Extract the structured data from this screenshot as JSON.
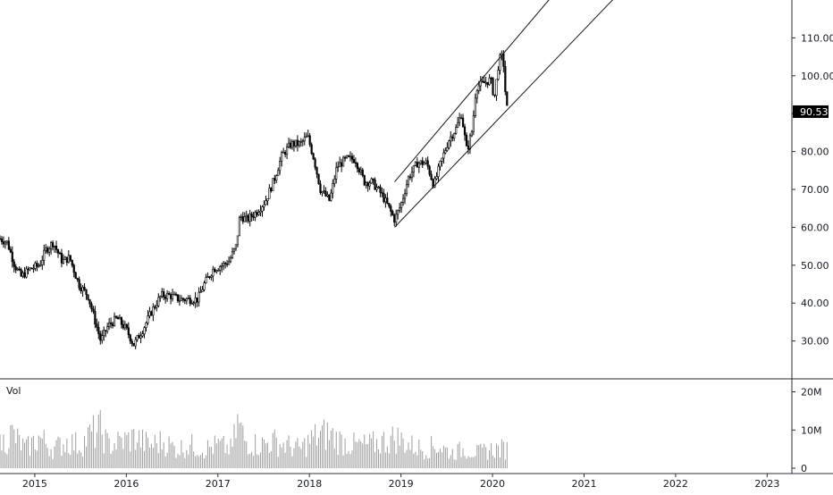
{
  "chart_data": {
    "type": "candlestick",
    "price_axis": {
      "ticks": [
        "110.00",
        "100.00",
        "90.00",
        "80.00",
        "70.00",
        "60.00",
        "50.00",
        "40.00",
        "30.00"
      ],
      "tick_values": [
        110,
        100,
        90,
        80,
        70,
        60,
        50,
        40,
        30
      ],
      "range": [
        20,
        120
      ],
      "last_price_label": "90.53",
      "last_price": 90.53
    },
    "volume_pane": {
      "label": "Vol",
      "ticks": [
        "20M",
        "10M",
        "0"
      ],
      "tick_values": [
        20000000,
        10000000,
        0
      ],
      "range": [
        0,
        22000000
      ]
    },
    "time_axis": {
      "ticks": [
        "2015",
        "2016",
        "2017",
        "2018",
        "2019",
        "2020",
        "2021",
        "2022",
        "2023"
      ],
      "tick_values": [
        2015,
        2016,
        2017,
        2018,
        2019,
        2020,
        2021,
        2022,
        2023
      ],
      "range": [
        2014.62,
        2023.27
      ]
    },
    "price_path": [
      [
        2014.62,
        57
      ],
      [
        2014.7,
        56
      ],
      [
        2014.78,
        50
      ],
      [
        2014.85,
        47
      ],
      [
        2014.95,
        49
      ],
      [
        2015.05,
        50
      ],
      [
        2015.12,
        54
      ],
      [
        2015.2,
        56
      ],
      [
        2015.3,
        51
      ],
      [
        2015.38,
        52
      ],
      [
        2015.48,
        45
      ],
      [
        2015.58,
        42
      ],
      [
        2015.65,
        36
      ],
      [
        2015.72,
        30
      ],
      [
        2015.8,
        34
      ],
      [
        2015.9,
        36
      ],
      [
        2016.0,
        33
      ],
      [
        2016.08,
        29
      ],
      [
        2016.18,
        33
      ],
      [
        2016.28,
        38
      ],
      [
        2016.38,
        42
      ],
      [
        2016.48,
        42
      ],
      [
        2016.58,
        41
      ],
      [
        2016.7,
        41
      ],
      [
        2016.78,
        41
      ],
      [
        2016.85,
        45
      ],
      [
        2016.95,
        49
      ],
      [
        2017.05,
        50
      ],
      [
        2017.12,
        51
      ],
      [
        2017.2,
        55
      ],
      [
        2017.24,
        63
      ],
      [
        2017.32,
        62
      ],
      [
        2017.42,
        64
      ],
      [
        2017.52,
        67
      ],
      [
        2017.62,
        73
      ],
      [
        2017.7,
        79
      ],
      [
        2017.8,
        82
      ],
      [
        2017.9,
        82
      ],
      [
        2017.98,
        84
      ],
      [
        2018.05,
        78
      ],
      [
        2018.12,
        70
      ],
      [
        2018.22,
        67
      ],
      [
        2018.3,
        76
      ],
      [
        2018.4,
        78
      ],
      [
        2018.5,
        78
      ],
      [
        2018.6,
        72
      ],
      [
        2018.68,
        72
      ],
      [
        2018.78,
        69
      ],
      [
        2018.85,
        66
      ],
      [
        2018.93,
        62
      ],
      [
        2019.0,
        66
      ],
      [
        2019.08,
        73
      ],
      [
        2019.18,
        77
      ],
      [
        2019.28,
        77
      ],
      [
        2019.36,
        71
      ],
      [
        2019.42,
        76
      ],
      [
        2019.52,
        83
      ],
      [
        2019.6,
        86
      ],
      [
        2019.66,
        90
      ],
      [
        2019.72,
        80
      ],
      [
        2019.78,
        86
      ],
      [
        2019.82,
        97
      ],
      [
        2019.9,
        98
      ],
      [
        2019.98,
        99
      ],
      [
        2020.02,
        94
      ],
      [
        2020.07,
        104
      ],
      [
        2020.1,
        105
      ],
      [
        2020.12,
        103
      ],
      [
        2020.15,
        92
      ],
      [
        2020.17,
        90.53
      ]
    ],
    "volume_series": [
      [
        2014.62,
        6
      ],
      [
        2014.75,
        9
      ],
      [
        2014.9,
        5
      ],
      [
        2015.05,
        8
      ],
      [
        2015.2,
        5
      ],
      [
        2015.35,
        7
      ],
      [
        2015.5,
        6
      ],
      [
        2015.62,
        9
      ],
      [
        2015.72,
        10
      ],
      [
        2015.8,
        6
      ],
      [
        2015.95,
        7
      ],
      [
        2016.1,
        8
      ],
      [
        2016.25,
        6
      ],
      [
        2016.4,
        7
      ],
      [
        2016.55,
        5
      ],
      [
        2016.7,
        6
      ],
      [
        2016.85,
        5
      ],
      [
        2017.0,
        6
      ],
      [
        2017.15,
        5
      ],
      [
        2017.22,
        12
      ],
      [
        2017.3,
        7
      ],
      [
        2017.45,
        6
      ],
      [
        2017.6,
        7
      ],
      [
        2017.75,
        6
      ],
      [
        2017.9,
        5
      ],
      [
        2018.05,
        8
      ],
      [
        2018.2,
        9
      ],
      [
        2018.35,
        7
      ],
      [
        2018.5,
        6
      ],
      [
        2018.65,
        6
      ],
      [
        2018.8,
        7
      ],
      [
        2018.95,
        8
      ],
      [
        2019.1,
        6
      ],
      [
        2019.25,
        5
      ],
      [
        2019.4,
        6
      ],
      [
        2019.55,
        4
      ],
      [
        2019.7,
        5
      ],
      [
        2019.85,
        4
      ],
      [
        2020.0,
        5
      ],
      [
        2020.17,
        5
      ]
    ],
    "volume_unit": "millions",
    "trend_channel": {
      "upper": [
        [
          2018.93,
          72
        ],
        [
          2020.65,
          121
        ]
      ],
      "lower": [
        [
          2018.93,
          60
        ],
        [
          2021.35,
          121
        ]
      ]
    },
    "grid": false
  },
  "colors": {
    "candle": "#000000",
    "volume": "#9e9e9e",
    "axis_text": "#131722",
    "price_tag_bg": "#000000",
    "price_tag_text": "#ffffff",
    "axis_line": "#2a2e39"
  }
}
